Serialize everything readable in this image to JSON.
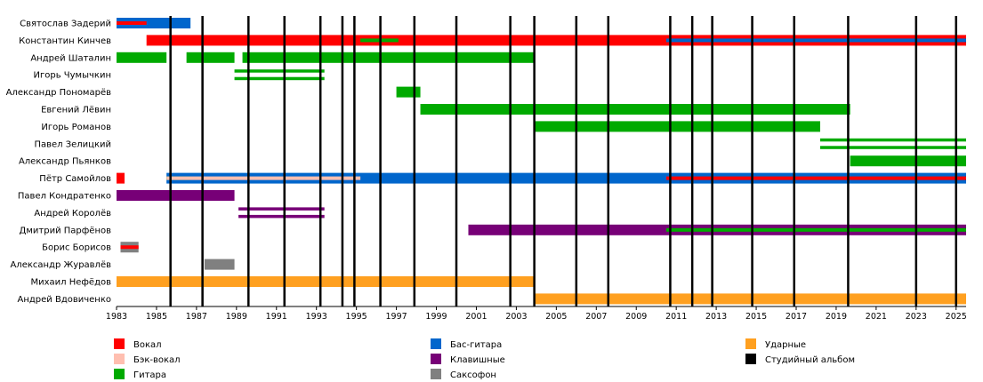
{
  "chart_data": {
    "type": "timeline",
    "x_range": [
      1983,
      2025.5
    ],
    "x_ticks": [
      1983,
      1985,
      1987,
      1989,
      1991,
      1993,
      1995,
      1997,
      1999,
      2001,
      2003,
      2005,
      2007,
      2009,
      2011,
      2013,
      2015,
      2017,
      2019,
      2021,
      2023,
      2025
    ],
    "roles": [
      {
        "key": "vocal",
        "label": "Вокал",
        "color": "#ff0000"
      },
      {
        "key": "back",
        "label": "Бэк-вокал",
        "color": "#ffbfb0"
      },
      {
        "key": "guitar",
        "label": "Гитара",
        "color": "#00aa00"
      },
      {
        "key": "bass",
        "label": "Бас-гитара",
        "color": "#0066cc"
      },
      {
        "key": "keys",
        "label": "Клавишные",
        "color": "#770077"
      },
      {
        "key": "sax",
        "label": "Саксофон",
        "color": "#808080"
      },
      {
        "key": "drums",
        "label": "Ударные",
        "color": "#ffa020"
      },
      {
        "key": "album",
        "label": "Студийный альбом",
        "color": "#000000"
      }
    ],
    "albums": [
      1985.7,
      1987.3,
      1989.6,
      1991.4,
      1993.2,
      1994.3,
      1994.9,
      1996.2,
      1997.9,
      2000.0,
      2002.7,
      2003.9,
      2006.0,
      2007.6,
      2010.7,
      2011.8,
      2012.8,
      2014.8,
      2016.9,
      2019.6,
      2023.0,
      2025.0
    ],
    "members": [
      {
        "name": "Святослав Задерий",
        "bars": [
          {
            "start": 1983.0,
            "end": 1986.7,
            "role": "bass"
          },
          {
            "start": 1983.0,
            "end": 1984.5,
            "role": "vocal",
            "style": "stripe"
          }
        ]
      },
      {
        "name": "Константин Кинчев",
        "bars": [
          {
            "start": 1984.5,
            "end": 2025.5,
            "role": "vocal"
          },
          {
            "start": 1995.2,
            "end": 1997.1,
            "role": "guitar",
            "style": "stripe"
          },
          {
            "start": 2010.5,
            "end": 2025.5,
            "role": "bass",
            "style": "stripe"
          }
        ]
      },
      {
        "name": "Андрей Шаталин",
        "bars": [
          {
            "start": 1983.0,
            "end": 1985.5,
            "role": "guitar"
          },
          {
            "start": 1986.5,
            "end": 1988.9,
            "role": "guitar"
          },
          {
            "start": 1989.3,
            "end": 2003.9,
            "role": "guitar"
          }
        ]
      },
      {
        "name": "Игорь Чумычкин",
        "bars": [
          {
            "start": 1988.9,
            "end": 1993.4,
            "role": "guitar",
            "style": "double"
          }
        ]
      },
      {
        "name": "Александр Пономарёв",
        "bars": [
          {
            "start": 1997.0,
            "end": 1998.2,
            "role": "guitar"
          }
        ]
      },
      {
        "name": "Евгений Лёвин",
        "bars": [
          {
            "start": 1998.2,
            "end": 2019.7,
            "role": "guitar"
          }
        ]
      },
      {
        "name": "Игорь Романов",
        "bars": [
          {
            "start": 2003.9,
            "end": 2018.2,
            "role": "guitar"
          }
        ]
      },
      {
        "name": "Павел Зелицкий",
        "bars": [
          {
            "start": 2018.2,
            "end": 2025.5,
            "role": "guitar",
            "style": "double"
          }
        ]
      },
      {
        "name": "Александр Пьянков",
        "bars": [
          {
            "start": 2019.7,
            "end": 2025.5,
            "role": "guitar"
          }
        ]
      },
      {
        "name": "Пётр Самойлов",
        "bars": [
          {
            "start": 1983.0,
            "end": 1983.4,
            "role": "vocal"
          },
          {
            "start": 1985.5,
            "end": 2025.5,
            "role": "bass"
          },
          {
            "start": 1985.5,
            "end": 1986.7,
            "role": "guitar",
            "style": "stripe"
          },
          {
            "start": 1985.5,
            "end": 1995.2,
            "role": "back",
            "style": "stripe"
          },
          {
            "start": 2010.5,
            "end": 2025.5,
            "role": "vocal",
            "style": "stripe"
          }
        ]
      },
      {
        "name": "Павел Кондратенко",
        "bars": [
          {
            "start": 1983.0,
            "end": 1988.9,
            "role": "keys"
          }
        ]
      },
      {
        "name": "Андрей Королёв",
        "bars": [
          {
            "start": 1989.1,
            "end": 1993.4,
            "role": "keys",
            "style": "double"
          }
        ]
      },
      {
        "name": "Дмитрий Парфёнов",
        "bars": [
          {
            "start": 2000.6,
            "end": 2025.5,
            "role": "keys"
          },
          {
            "start": 2010.5,
            "end": 2025.5,
            "role": "guitar",
            "style": "stripe"
          }
        ]
      },
      {
        "name": "Борис Борисов",
        "bars": [
          {
            "start": 1983.2,
            "end": 1984.1,
            "role": "sax"
          },
          {
            "start": 1983.2,
            "end": 1984.1,
            "role": "vocal",
            "style": "stripe"
          }
        ]
      },
      {
        "name": "Александр Журавлёв",
        "bars": [
          {
            "start": 1987.4,
            "end": 1988.9,
            "role": "sax"
          }
        ]
      },
      {
        "name": "Михаил Нефёдов",
        "bars": [
          {
            "start": 1983.0,
            "end": 2003.9,
            "role": "drums"
          }
        ]
      },
      {
        "name": "Андрей Вдовиченко",
        "bars": [
          {
            "start": 2003.9,
            "end": 2025.5,
            "role": "drums"
          }
        ]
      }
    ]
  }
}
